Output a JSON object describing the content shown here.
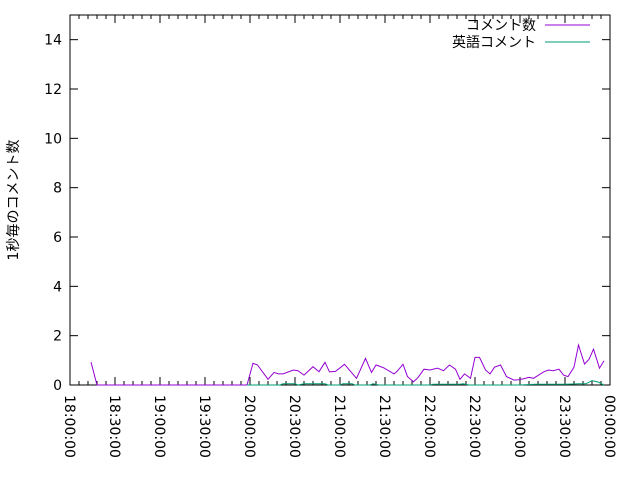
{
  "chart_data": {
    "type": "line",
    "title": "",
    "xlabel": "",
    "ylabel": "1秒毎のコメント数",
    "xlim": [
      "18:00:00",
      "00:00:00"
    ],
    "ylim": [
      0,
      15
    ],
    "xticks": [
      "18:00:00",
      "18:30:00",
      "19:00:00",
      "19:30:00",
      "20:00:00",
      "20:30:00",
      "21:00:00",
      "21:30:00",
      "22:00:00",
      "22:30:00",
      "23:00:00",
      "23:30:00",
      "00:00:00"
    ],
    "yticks": [
      "0",
      "2",
      "4",
      "6",
      "8",
      "10",
      "12",
      "14"
    ],
    "grid": false,
    "legend_position": "top-right",
    "series": [
      {
        "name": "コメント数",
        "color": "#9400d3",
        "points": [
          [
            "18:14",
            0.93
          ],
          [
            "18:18",
            0
          ],
          [
            "19:58",
            0
          ],
          [
            "20:02",
            0.88
          ],
          [
            "20:05",
            0.81
          ],
          [
            "20:12",
            0.23
          ],
          [
            "20:16",
            0.51
          ],
          [
            "20:19",
            0.45
          ],
          [
            "20:22",
            0.45
          ],
          [
            "20:29",
            0.61
          ],
          [
            "20:32",
            0.58
          ],
          [
            "20:36",
            0.4
          ],
          [
            "20:42",
            0.74
          ],
          [
            "20:46",
            0.54
          ],
          [
            "20:50",
            0.92
          ],
          [
            "20:53",
            0.53
          ],
          [
            "20:57",
            0.55
          ],
          [
            "21:03",
            0.84
          ],
          [
            "21:11",
            0.27
          ],
          [
            "21:17",
            1.08
          ],
          [
            "21:21",
            0.51
          ],
          [
            "21:24",
            0.81
          ],
          [
            "21:29",
            0.7
          ],
          [
            "21:36",
            0.45
          ],
          [
            "21:38",
            0.55
          ],
          [
            "21:42",
            0.84
          ],
          [
            "21:45",
            0.34
          ],
          [
            "21:49",
            0.13
          ],
          [
            "21:52",
            0.3
          ],
          [
            "21:56",
            0.64
          ],
          [
            "22:00",
            0.61
          ],
          [
            "22:05",
            0.68
          ],
          [
            "22:09",
            0.58
          ],
          [
            "22:13",
            0.81
          ],
          [
            "22:17",
            0.64
          ],
          [
            "22:20",
            0.23
          ],
          [
            "22:23",
            0.45
          ],
          [
            "22:27",
            0.27
          ],
          [
            "22:30",
            1.12
          ],
          [
            "22:33",
            1.12
          ],
          [
            "22:37",
            0.61
          ],
          [
            "22:40",
            0.45
          ],
          [
            "22:43",
            0.72
          ],
          [
            "22:47",
            0.81
          ],
          [
            "22:51",
            0.34
          ],
          [
            "22:56",
            0.2
          ],
          [
            "23:00",
            0.22
          ],
          [
            "23:06",
            0.31
          ],
          [
            "23:09",
            0.27
          ],
          [
            "23:16",
            0.54
          ],
          [
            "23:19",
            0.61
          ],
          [
            "23:22",
            0.58
          ],
          [
            "23:26",
            0.64
          ],
          [
            "23:29",
            0.4
          ],
          [
            "23:32",
            0.34
          ],
          [
            "23:36",
            0.72
          ],
          [
            "23:39",
            1.62
          ],
          [
            "23:43",
            0.85
          ],
          [
            "23:46",
            1.04
          ],
          [
            "23:49",
            1.45
          ],
          [
            "23:53",
            0.68
          ],
          [
            "23:56",
            0.98
          ]
        ]
      },
      {
        "name": "英語コメント",
        "color": "#009e73",
        "points": [
          [
            "19:58",
            0
          ],
          [
            "20:20",
            0
          ],
          [
            "20:22",
            0.05
          ],
          [
            "20:30",
            0.05
          ],
          [
            "20:32",
            0
          ],
          [
            "20:36",
            0.05
          ],
          [
            "20:50",
            0.05
          ],
          [
            "20:52",
            0
          ],
          [
            "21:00",
            0
          ],
          [
            "21:02",
            0.05
          ],
          [
            "21:08",
            0.05
          ],
          [
            "21:10",
            0
          ],
          [
            "21:20",
            0
          ],
          [
            "21:22",
            0.05
          ],
          [
            "21:26",
            0
          ],
          [
            "22:00",
            0
          ],
          [
            "22:02",
            0.03
          ],
          [
            "22:20",
            0.03
          ],
          [
            "22:22",
            0.05
          ],
          [
            "22:26",
            0
          ],
          [
            "23:00",
            0
          ],
          [
            "23:10",
            0.03
          ],
          [
            "23:30",
            0.03
          ],
          [
            "23:40",
            0.05
          ],
          [
            "23:44",
            0.05
          ],
          [
            "23:48",
            0.18
          ],
          [
            "23:52",
            0.12
          ],
          [
            "23:56",
            0
          ]
        ]
      }
    ]
  }
}
